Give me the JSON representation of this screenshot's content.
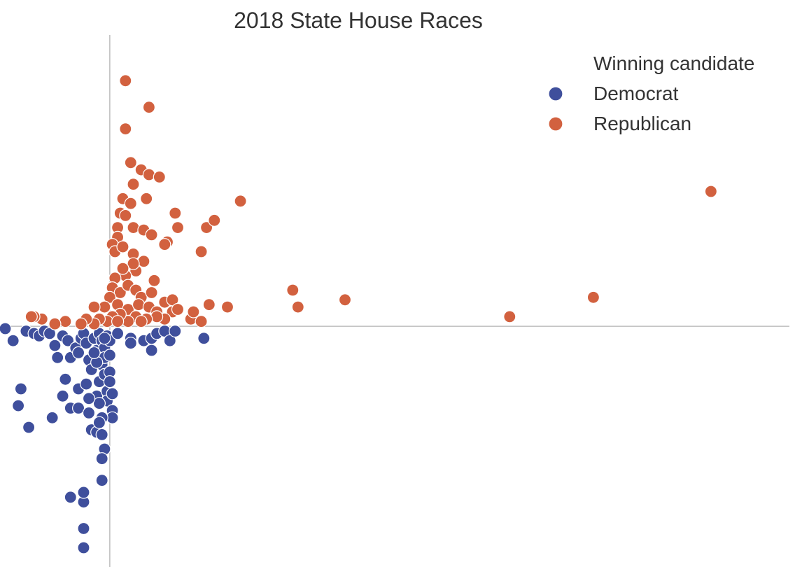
{
  "chart_data": {
    "type": "scatter",
    "title": "2018 State House Races",
    "xlabel": "",
    "ylabel": "",
    "xlim": [
      -4.2,
      26.0
    ],
    "ylim": [
      -10.0,
      12.1
    ],
    "grid": false,
    "reference_lines": {
      "x": 0,
      "y": 0
    },
    "legend": {
      "title": "Winning candidate",
      "position": "top-right",
      "entries": [
        "Democrat",
        "Republican"
      ]
    },
    "series": [
      {
        "name": "Democrat",
        "color": "#3f4f9c",
        "points": [
          [
            -4.0,
            -0.1
          ],
          [
            -3.7,
            -0.6
          ],
          [
            -3.2,
            -0.2
          ],
          [
            -2.9,
            -0.3
          ],
          [
            -2.7,
            -0.4
          ],
          [
            -2.5,
            -0.2
          ],
          [
            -2.3,
            -0.3
          ],
          [
            -2.1,
            -0.8
          ],
          [
            -2.0,
            -1.3
          ],
          [
            -1.8,
            -0.4
          ],
          [
            -1.6,
            -0.6
          ],
          [
            -1.5,
            -1.3
          ],
          [
            -1.3,
            -0.9
          ],
          [
            -1.2,
            -1.1
          ],
          [
            -1.1,
            -0.5
          ],
          [
            -1.0,
            -0.3
          ],
          [
            -0.9,
            -0.7
          ],
          [
            -0.8,
            -1.4
          ],
          [
            -0.7,
            -1.8
          ],
          [
            -0.6,
            -0.5
          ],
          [
            -0.5,
            -1.0
          ],
          [
            -0.4,
            -0.3
          ],
          [
            -0.3,
            -0.6
          ],
          [
            -0.2,
            -0.9
          ],
          [
            -0.1,
            -0.4
          ],
          [
            0.0,
            -0.6
          ],
          [
            0.3,
            -0.3
          ],
          [
            0.8,
            -0.5
          ],
          [
            0.8,
            -0.7
          ],
          [
            1.3,
            -0.6
          ],
          [
            1.6,
            -0.5
          ],
          [
            1.6,
            -1.0
          ],
          [
            1.8,
            -0.3
          ],
          [
            2.1,
            -0.2
          ],
          [
            2.3,
            -0.6
          ],
          [
            2.5,
            -0.2
          ],
          [
            3.6,
            -0.5
          ],
          [
            -1.7,
            -2.2
          ],
          [
            -1.8,
            -2.9
          ],
          [
            -1.5,
            -3.4
          ],
          [
            -2.2,
            -3.8
          ],
          [
            -3.4,
            -2.6
          ],
          [
            -3.5,
            -3.3
          ],
          [
            -3.1,
            -4.2
          ],
          [
            -1.2,
            -2.6
          ],
          [
            -1.2,
            -3.4
          ],
          [
            -0.8,
            -3.6
          ],
          [
            -0.7,
            -4.3
          ],
          [
            -0.5,
            -4.4
          ],
          [
            -0.5,
            -2.9
          ],
          [
            -0.4,
            -2.3
          ],
          [
            -0.3,
            -1.6
          ],
          [
            -0.2,
            -1.3
          ],
          [
            -0.2,
            -2.0
          ],
          [
            -0.1,
            -2.7
          ],
          [
            -0.1,
            -3.1
          ],
          [
            0.0,
            -1.9
          ],
          [
            0.0,
            -2.3
          ],
          [
            0.1,
            -2.8
          ],
          [
            0.1,
            -3.5
          ],
          [
            0.1,
            -3.8
          ],
          [
            -0.3,
            -3.8
          ],
          [
            -0.4,
            -3.2
          ],
          [
            -0.4,
            -4.0
          ],
          [
            -0.3,
            -4.5
          ],
          [
            -0.5,
            -1.5
          ],
          [
            -0.9,
            -2.4
          ],
          [
            -0.8,
            -3.0
          ],
          [
            -0.2,
            -5.1
          ],
          [
            -0.3,
            -5.5
          ],
          [
            -0.3,
            -6.4
          ],
          [
            -1.5,
            -7.1
          ],
          [
            -1.0,
            -7.3
          ],
          [
            -1.0,
            -6.9
          ],
          [
            -1.0,
            -8.4
          ],
          [
            -1.0,
            -9.2
          ],
          [
            0.0,
            -1.2
          ],
          [
            -0.6,
            -1.1
          ],
          [
            -0.2,
            -0.5
          ]
        ]
      },
      {
        "name": "Republican",
        "color": "#d2613f",
        "points": [
          [
            0.6,
            10.2
          ],
          [
            1.5,
            9.1
          ],
          [
            0.6,
            8.2
          ],
          [
            0.8,
            6.8
          ],
          [
            1.2,
            6.5
          ],
          [
            1.5,
            6.3
          ],
          [
            1.9,
            6.2
          ],
          [
            0.9,
            5.9
          ],
          [
            0.5,
            5.3
          ],
          [
            1.4,
            5.3
          ],
          [
            0.8,
            5.1
          ],
          [
            0.4,
            4.7
          ],
          [
            0.6,
            4.6
          ],
          [
            0.3,
            4.1
          ],
          [
            0.9,
            4.1
          ],
          [
            1.3,
            4.0
          ],
          [
            1.6,
            3.8
          ],
          [
            2.5,
            4.7
          ],
          [
            2.6,
            4.1
          ],
          [
            2.2,
            3.5
          ],
          [
            2.1,
            3.4
          ],
          [
            3.7,
            4.1
          ],
          [
            4.0,
            4.4
          ],
          [
            3.5,
            3.1
          ],
          [
            5.0,
            5.2
          ],
          [
            0.3,
            3.7
          ],
          [
            0.1,
            3.4
          ],
          [
            0.2,
            3.1
          ],
          [
            0.5,
            3.3
          ],
          [
            0.9,
            3.0
          ],
          [
            1.3,
            2.7
          ],
          [
            1.0,
            2.3
          ],
          [
            0.6,
            2.1
          ],
          [
            0.2,
            2.0
          ],
          [
            0.1,
            1.6
          ],
          [
            0.4,
            1.4
          ],
          [
            0.7,
            1.7
          ],
          [
            1.0,
            1.5
          ],
          [
            1.2,
            1.2
          ],
          [
            1.6,
            1.4
          ],
          [
            0.0,
            1.2
          ],
          [
            -0.2,
            0.8
          ],
          [
            0.3,
            0.9
          ],
          [
            0.7,
            0.7
          ],
          [
            1.1,
            0.9
          ],
          [
            1.5,
            0.8
          ],
          [
            1.8,
            0.6
          ],
          [
            2.1,
            1.0
          ],
          [
            2.4,
            1.1
          ],
          [
            2.4,
            0.6
          ],
          [
            2.1,
            0.3
          ],
          [
            1.8,
            0.4
          ],
          [
            1.4,
            0.3
          ],
          [
            1.0,
            0.4
          ],
          [
            0.7,
            0.2
          ],
          [
            0.4,
            0.5
          ],
          [
            0.1,
            0.4
          ],
          [
            -0.1,
            0.2
          ],
          [
            -0.4,
            0.3
          ],
          [
            -0.6,
            0.1
          ],
          [
            -0.9,
            0.3
          ],
          [
            -1.1,
            0.1
          ],
          [
            -1.7,
            0.2
          ],
          [
            -2.1,
            0.1
          ],
          [
            -2.6,
            0.3
          ],
          [
            -2.9,
            0.4
          ],
          [
            -3.0,
            0.4
          ],
          [
            -0.6,
            0.8
          ],
          [
            2.6,
            0.7
          ],
          [
            3.1,
            0.3
          ],
          [
            3.2,
            0.6
          ],
          [
            3.5,
            0.2
          ],
          [
            3.8,
            0.9
          ],
          [
            4.5,
            0.8
          ],
          [
            7.0,
            1.5
          ],
          [
            7.2,
            0.8
          ],
          [
            9.0,
            1.1
          ],
          [
            15.3,
            0.4
          ],
          [
            18.5,
            1.2
          ],
          [
            23.0,
            5.6
          ],
          [
            0.9,
            2.6
          ],
          [
            0.5,
            2.4
          ],
          [
            1.7,
            1.9
          ],
          [
            0.3,
            0.2
          ],
          [
            1.2,
            0.2
          ]
        ]
      }
    ]
  }
}
